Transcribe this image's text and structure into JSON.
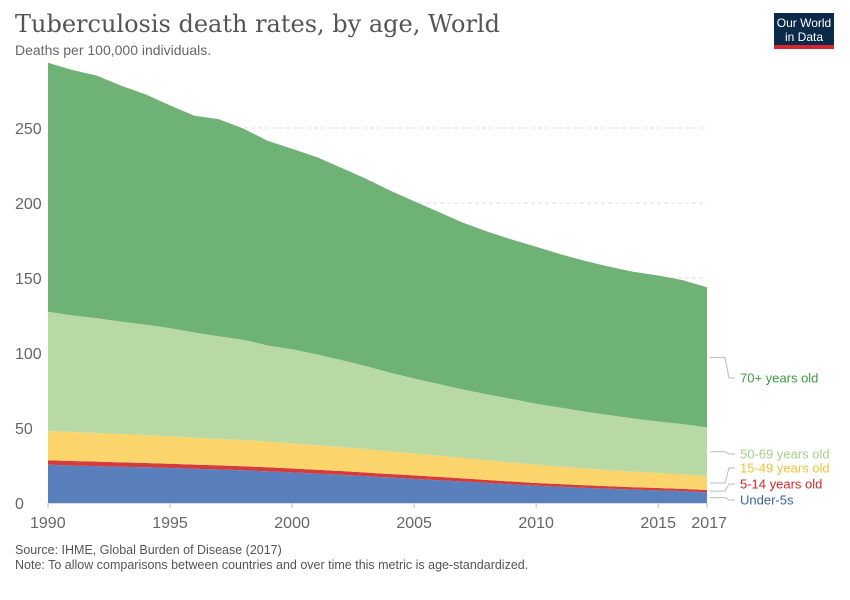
{
  "header": {
    "title": "Tuberculosis death rates, by age, World",
    "subtitle": "Deaths per 100,000 individuals.",
    "logo_line1": "Our World",
    "logo_line2": "in Data"
  },
  "footer": {
    "source": "Source: IHME, Global Burden of Disease (2017)",
    "note": "Note: To allow comparisons between countries and over time this metric is age-standardized."
  },
  "chart_data": {
    "type": "area",
    "stacked": true,
    "x": [
      1990,
      1991,
      1992,
      1993,
      1994,
      1995,
      1996,
      1997,
      1998,
      1999,
      2000,
      2001,
      2002,
      2003,
      2004,
      2005,
      2006,
      2007,
      2008,
      2009,
      2010,
      2011,
      2012,
      2013,
      2014,
      2015,
      2016,
      2017
    ],
    "xlim": [
      1990,
      2017
    ],
    "ylim": [
      0,
      290
    ],
    "x_ticks": [
      1990,
      1995,
      2000,
      2005,
      2010,
      2015,
      2017
    ],
    "y_ticks": [
      0,
      50,
      100,
      150,
      200,
      250
    ],
    "grid": "horizontal dashed",
    "series": [
      {
        "name": "Under-5s",
        "color": "#5a7fbd",
        "label_color": "#3d63a6",
        "values": [
          25.5,
          25,
          24.6,
          24.2,
          23.8,
          23.3,
          22.8,
          22.3,
          21.8,
          21.1,
          20.4,
          19.6,
          18.8,
          17.9,
          17,
          16.1,
          15.2,
          14.3,
          13.3,
          12.4,
          11.5,
          10.8,
          10.1,
          9.5,
          8.9,
          8.4,
          7.9,
          7.2
        ]
      },
      {
        "name": "5-14 years old",
        "color": "#d43c3c",
        "label_color": "#cf2a2a",
        "values": [
          3,
          3,
          3,
          2.9,
          2.9,
          2.9,
          2.8,
          2.8,
          2.7,
          2.7,
          2.6,
          2.6,
          2.5,
          2.4,
          2.3,
          2.3,
          2.2,
          2.1,
          2,
          1.9,
          1.8,
          1.8,
          1.7,
          1.7,
          1.6,
          1.6,
          1.5,
          1.5
        ]
      },
      {
        "name": "15-49 years old",
        "color": "#fbd56b",
        "label_color": "#f0c23a",
        "values": [
          19.5,
          19.3,
          19.1,
          18.9,
          18.6,
          18.3,
          18,
          17.7,
          17.4,
          17.1,
          16.8,
          16.4,
          16,
          15.6,
          15.2,
          14.7,
          14.2,
          13.7,
          13.2,
          12.7,
          12.2,
          11.7,
          11.2,
          10.8,
          10.4,
          10,
          9.7,
          9.3
        ]
      },
      {
        "name": "50-69 years old",
        "color": "#b9d9a4",
        "label_color": "#a7cf8d",
        "values": [
          79.5,
          77.8,
          76.5,
          74.9,
          73.6,
          72.1,
          70.1,
          68.3,
          66.9,
          64.1,
          62.7,
          60.6,
          58,
          55.5,
          52.4,
          49.9,
          47.7,
          45.6,
          43.9,
          42.3,
          40.7,
          39.3,
          37.9,
          36.6,
          35.4,
          34.3,
          33.5,
          32.4
        ]
      },
      {
        "name": "70+ years old",
        "color": "#6fb275",
        "label_color": "#3e9c44",
        "values": [
          166,
          163.6,
          161.7,
          157.3,
          153.5,
          148.5,
          144.5,
          144.7,
          140.9,
          136.4,
          133.7,
          131.5,
          128.3,
          125,
          121.5,
          118.2,
          114.8,
          111.2,
          108.5,
          106.4,
          104.6,
          102.2,
          100.5,
          98.9,
          97.8,
          97.4,
          96,
          93.4
        ]
      }
    ]
  }
}
